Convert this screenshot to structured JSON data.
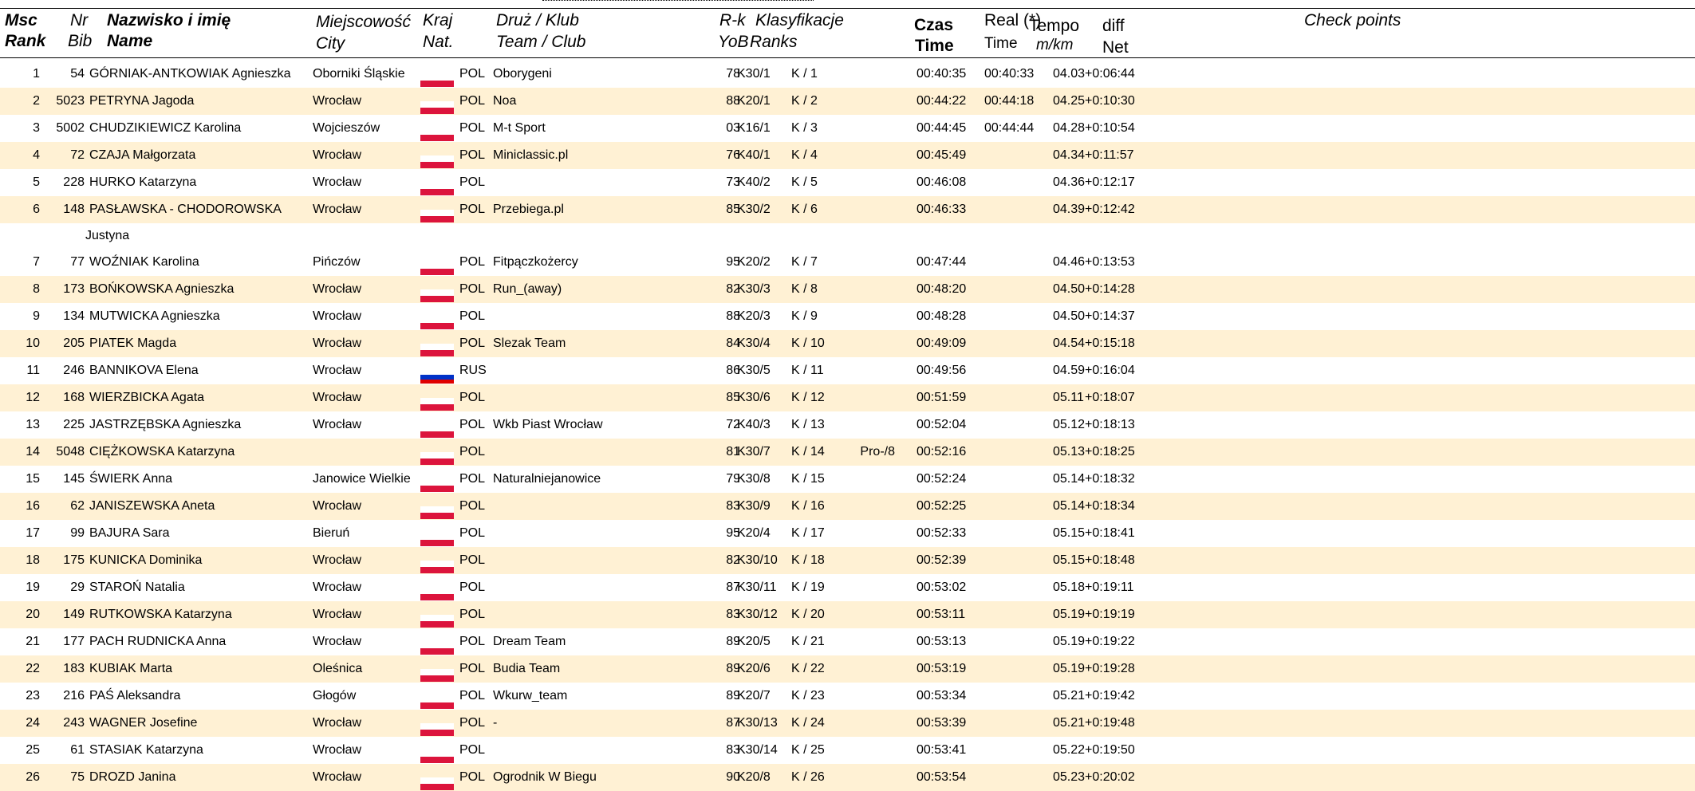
{
  "header": {
    "msc": "Msc",
    "rank": "Rank",
    "nr": "Nr",
    "bib": "Bib",
    "nazwisko": "Nazwisko i imię",
    "name": "Name",
    "miejscowosc": "Miejscowość",
    "city": "City",
    "kraj": "Kraj",
    "nat": "Nat.",
    "druz": "Druż / Klub",
    "team": "Team / Club",
    "rk": "R-k",
    "yob": "YoB",
    "klasyfikacje": "Klasyfikacje",
    "ranks": "Ranks",
    "czas": "Czas",
    "time": "Time",
    "real": "Real (*)",
    "real_time": "Time",
    "tempo": "Tempo",
    "mkm": "m/km",
    "diff": "diff",
    "net": "Net",
    "checkpoints": "Check points"
  },
  "rows": [
    {
      "rank": "1",
      "bib": "54",
      "name": "GÓRNIAK-ANTKOWIAK Agnieszka",
      "city": "Oborniki Śląskie",
      "nat": "POL",
      "team": "Oborygeni",
      "yob": "78",
      "cat": "K30/1",
      "open": "K / 1",
      "pro": "",
      "time": "00:40:35",
      "real": "00:40:33",
      "tempo": "04.03",
      "diff": "+0:06:44"
    },
    {
      "rank": "2",
      "bib": "5023",
      "name": "PETRYNA Jagoda",
      "city": "Wrocław",
      "nat": "POL",
      "team": "Noa",
      "yob": "88",
      "cat": "K20/1",
      "open": "K / 2",
      "pro": "",
      "time": "00:44:22",
      "real": "00:44:18",
      "tempo": "04.25",
      "diff": "+0:10:30"
    },
    {
      "rank": "3",
      "bib": "5002",
      "name": "CHUDZIKIEWICZ Karolina",
      "city": "Wojcieszów",
      "nat": "POL",
      "team": "M-t Sport",
      "yob": "03",
      "cat": "K16/1",
      "open": "K / 3",
      "pro": "",
      "time": "00:44:45",
      "real": "00:44:44",
      "tempo": "04.28",
      "diff": "+0:10:54"
    },
    {
      "rank": "4",
      "bib": "72",
      "name": "CZAJA Małgorzata",
      "city": "Wrocław",
      "nat": "POL",
      "team": "Miniclassic.pl",
      "yob": "76",
      "cat": "K40/1",
      "open": "K / 4",
      "pro": "",
      "time": "00:45:49",
      "real": "",
      "tempo": "04.34",
      "diff": "+0:11:57"
    },
    {
      "rank": "5",
      "bib": "228",
      "name": "HURKO Katarzyna",
      "city": "Wrocław",
      "nat": "POL",
      "team": "",
      "yob": "73",
      "cat": "K40/2",
      "open": "K / 5",
      "pro": "",
      "time": "00:46:08",
      "real": "",
      "tempo": "04.36",
      "diff": "+0:12:17"
    },
    {
      "rank": "6",
      "bib": "148",
      "name": "PASŁAWSKA - CHODOROWSKA",
      "name2": "Justyna",
      "city": "Wrocław",
      "nat": "POL",
      "team": "Przebiega.pl",
      "yob": "85",
      "cat": "K30/2",
      "open": "K / 6",
      "pro": "",
      "time": "00:46:33",
      "real": "",
      "tempo": "04.39",
      "diff": "+0:12:42"
    },
    {
      "rank": "7",
      "bib": "77",
      "name": "WOŹNIAK Karolina",
      "city": "Pińczów",
      "nat": "POL",
      "team": "Fitpączkożercy",
      "yob": "95",
      "cat": "K20/2",
      "open": "K / 7",
      "pro": "",
      "time": "00:47:44",
      "real": "",
      "tempo": "04.46",
      "diff": "+0:13:53"
    },
    {
      "rank": "8",
      "bib": "173",
      "name": "BOŃKOWSKA Agnieszka",
      "city": "Wrocław",
      "nat": "POL",
      "team": "Run_(away)",
      "yob": "82",
      "cat": "K30/3",
      "open": "K / 8",
      "pro": "",
      "time": "00:48:20",
      "real": "",
      "tempo": "04.50",
      "diff": "+0:14:28"
    },
    {
      "rank": "9",
      "bib": "134",
      "name": "MUTWICKA Agnieszka",
      "city": "Wrocław",
      "nat": "POL",
      "team": "",
      "yob": "88",
      "cat": "K20/3",
      "open": "K / 9",
      "pro": "",
      "time": "00:48:28",
      "real": "",
      "tempo": "04.50",
      "diff": "+0:14:37"
    },
    {
      "rank": "10",
      "bib": "205",
      "name": "PIATEK Magda",
      "city": "Wrocław",
      "nat": "POL",
      "team": "Slezak Team",
      "yob": "84",
      "cat": "K30/4",
      "open": "K / 10",
      "pro": "",
      "time": "00:49:09",
      "real": "",
      "tempo": "04.54",
      "diff": "+0:15:18"
    },
    {
      "rank": "11",
      "bib": "246",
      "name": "BANNIKOVA Elena",
      "city": "Wrocław",
      "nat": "RUS",
      "team": "",
      "yob": "86",
      "cat": "K30/5",
      "open": "K / 11",
      "pro": "",
      "time": "00:49:56",
      "real": "",
      "tempo": "04.59",
      "diff": "+0:16:04"
    },
    {
      "rank": "12",
      "bib": "168",
      "name": "WIERZBICKA Agata",
      "city": "Wrocław",
      "nat": "POL",
      "team": "",
      "yob": "85",
      "cat": "K30/6",
      "open": "K / 12",
      "pro": "",
      "time": "00:51:59",
      "real": "",
      "tempo": "05.11",
      "diff": "+0:18:07"
    },
    {
      "rank": "13",
      "bib": "225",
      "name": "JASTRZĘBSKA Agnieszka",
      "city": "Wrocław",
      "nat": "POL",
      "team": "Wkb Piast Wrocław",
      "yob": "72",
      "cat": "K40/3",
      "open": "K / 13",
      "pro": "",
      "time": "00:52:04",
      "real": "",
      "tempo": "05.12",
      "diff": "+0:18:13"
    },
    {
      "rank": "14",
      "bib": "5048",
      "name": "CIĘŻKOWSKA Katarzyna",
      "city": "",
      "nat": "POL",
      "team": "",
      "yob": "81",
      "cat": "K30/7",
      "open": "K / 14",
      "pro": "Pro-/8",
      "time": "00:52:16",
      "real": "",
      "tempo": "05.13",
      "diff": "+0:18:25"
    },
    {
      "rank": "15",
      "bib": "145",
      "name": "ŚWIERK Anna",
      "city": "Janowice Wielkie",
      "nat": "POL",
      "team": "Naturalniejanowice",
      "yob": "79",
      "cat": "K30/8",
      "open": "K / 15",
      "pro": "",
      "time": "00:52:24",
      "real": "",
      "tempo": "05.14",
      "diff": "+0:18:32"
    },
    {
      "rank": "16",
      "bib": "62",
      "name": "JANISZEWSKA Aneta",
      "city": "Wrocław",
      "nat": "POL",
      "team": "",
      "yob": "83",
      "cat": "K30/9",
      "open": "K / 16",
      "pro": "",
      "time": "00:52:25",
      "real": "",
      "tempo": "05.14",
      "diff": "+0:18:34"
    },
    {
      "rank": "17",
      "bib": "99",
      "name": "BAJURA Sara",
      "city": "Bieruń",
      "nat": "POL",
      "team": "",
      "yob": "95",
      "cat": "K20/4",
      "open": "K / 17",
      "pro": "",
      "time": "00:52:33",
      "real": "",
      "tempo": "05.15",
      "diff": "+0:18:41"
    },
    {
      "rank": "18",
      "bib": "175",
      "name": "KUNICKA Dominika",
      "city": "Wrocław",
      "nat": "POL",
      "team": "",
      "yob": "82",
      "cat": "K30/10",
      "open": "K / 18",
      "pro": "",
      "time": "00:52:39",
      "real": "",
      "tempo": "05.15",
      "diff": "+0:18:48"
    },
    {
      "rank": "19",
      "bib": "29",
      "name": "STAROŃ Natalia",
      "city": "Wrocław",
      "nat": "POL",
      "team": "",
      "yob": "87",
      "cat": "K30/11",
      "open": "K / 19",
      "pro": "",
      "time": "00:53:02",
      "real": "",
      "tempo": "05.18",
      "diff": "+0:19:11"
    },
    {
      "rank": "20",
      "bib": "149",
      "name": "RUTKOWSKA Katarzyna",
      "city": "Wrocław",
      "nat": "POL",
      "team": "",
      "yob": "83",
      "cat": "K30/12",
      "open": "K / 20",
      "pro": "",
      "time": "00:53:11",
      "real": "",
      "tempo": "05.19",
      "diff": "+0:19:19"
    },
    {
      "rank": "21",
      "bib": "177",
      "name": "PACH RUDNICKA Anna",
      "city": "Wrocław",
      "nat": "POL",
      "team": "Dream Team",
      "yob": "89",
      "cat": "K20/5",
      "open": "K / 21",
      "pro": "",
      "time": "00:53:13",
      "real": "",
      "tempo": "05.19",
      "diff": "+0:19:22"
    },
    {
      "rank": "22",
      "bib": "183",
      "name": "KUBIAK Marta",
      "city": "Oleśnica",
      "nat": "POL",
      "team": "Budia Team",
      "yob": "89",
      "cat": "K20/6",
      "open": "K / 22",
      "pro": "",
      "time": "00:53:19",
      "real": "",
      "tempo": "05.19",
      "diff": "+0:19:28"
    },
    {
      "rank": "23",
      "bib": "216",
      "name": "PAŚ Aleksandra",
      "city": "Głogów",
      "nat": "POL",
      "team": "Wkurw_team",
      "yob": "89",
      "cat": "K20/7",
      "open": "K / 23",
      "pro": "",
      "time": "00:53:34",
      "real": "",
      "tempo": "05.21",
      "diff": "+0:19:42"
    },
    {
      "rank": "24",
      "bib": "243",
      "name": "WAGNER Josefine",
      "city": "Wrocław",
      "nat": "POL",
      "team": "-",
      "yob": "87",
      "cat": "K30/13",
      "open": "K / 24",
      "pro": "",
      "time": "00:53:39",
      "real": "",
      "tempo": "05.21",
      "diff": "+0:19:48"
    },
    {
      "rank": "25",
      "bib": "61",
      "name": "STASIAK Katarzyna",
      "city": "Wrocław",
      "nat": "POL",
      "team": "",
      "yob": "83",
      "cat": "K30/14",
      "open": "K / 25",
      "pro": "",
      "time": "00:53:41",
      "real": "",
      "tempo": "05.22",
      "diff": "+0:19:50"
    },
    {
      "rank": "26",
      "bib": "75",
      "name": "DROZD Janina",
      "city": "Wrocław",
      "nat": "POL",
      "team": "Ogrodnik W Biegu",
      "yob": "90",
      "cat": "K20/8",
      "open": "K / 26",
      "pro": "",
      "time": "00:53:54",
      "real": "",
      "tempo": "05.23",
      "diff": "+0:20:02"
    }
  ]
}
